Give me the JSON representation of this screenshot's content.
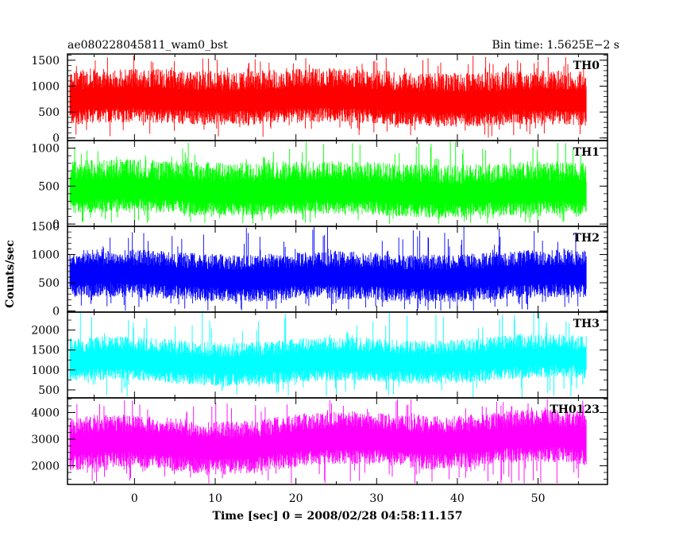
{
  "chart_data": {
    "type": "line",
    "title": "ae080228045811_wam0_bst",
    "bin_time_label": "Bin time: 1.5625E−2 s",
    "xlabel": "Time [sec] 0 = 2008/02/28 04:58:11.157",
    "ylabel": "Counts/sec",
    "xlim": [
      -8.3,
      58.6
    ],
    "x_data_range": [
      -8.0,
      56.0
    ],
    "x_ticks": [
      0,
      10,
      20,
      30,
      40,
      50
    ],
    "x_tick_labels": [
      "0",
      "10",
      "20",
      "30",
      "40",
      "50"
    ],
    "grid": false,
    "panels": [
      {
        "name": "TH0",
        "color": "#ff0000",
        "ylim": [
          -50,
          1620
        ],
        "y_ticks": [
          0,
          500,
          1000,
          1500
        ],
        "y_tick_labels": [
          "0",
          "500",
          "1000",
          "1500"
        ],
        "mean": 720,
        "low_envelope": 250,
        "high_envelope": 1300,
        "max_peak": 1600,
        "min_dip": 0
      },
      {
        "name": "TH1",
        "color": "#00ff00",
        "ylim": [
          -30,
          1100
        ],
        "y_ticks": [
          0,
          500,
          1000
        ],
        "y_tick_labels": [
          "0",
          "500",
          "1000"
        ],
        "mean": 420,
        "low_envelope": 120,
        "high_envelope": 820,
        "max_peak": 1090,
        "min_dip": 0
      },
      {
        "name": "TH2",
        "color": "#0000ff",
        "ylim": [
          -20,
          1500
        ],
        "y_ticks": [
          0,
          500,
          1000,
          1500
        ],
        "y_tick_labels": [
          "0",
          "500",
          "1000",
          "1500"
        ],
        "mean": 620,
        "low_envelope": 200,
        "high_envelope": 1050,
        "max_peak": 1500,
        "min_dip": 0
      },
      {
        "name": "TH3",
        "color": "#00ffff",
        "ylim": [
          300,
          2450
        ],
        "y_ticks": [
          500,
          1000,
          1500,
          2000
        ],
        "y_tick_labels": [
          "500",
          "1000",
          "1500",
          "2000"
        ],
        "mean": 1220,
        "low_envelope": 700,
        "high_envelope": 1800,
        "max_peak": 2450,
        "min_dip": 310
      },
      {
        "name": "TH0123",
        "color": "#ff00ff",
        "ylim": [
          1300,
          4550
        ],
        "y_ticks": [
          2000,
          3000,
          4000
        ],
        "y_tick_labels": [
          "2000",
          "3000",
          "4000"
        ],
        "mean": 2900,
        "low_envelope": 1900,
        "high_envelope": 3900,
        "max_peak": 4500,
        "min_dip": 1330
      }
    ]
  }
}
